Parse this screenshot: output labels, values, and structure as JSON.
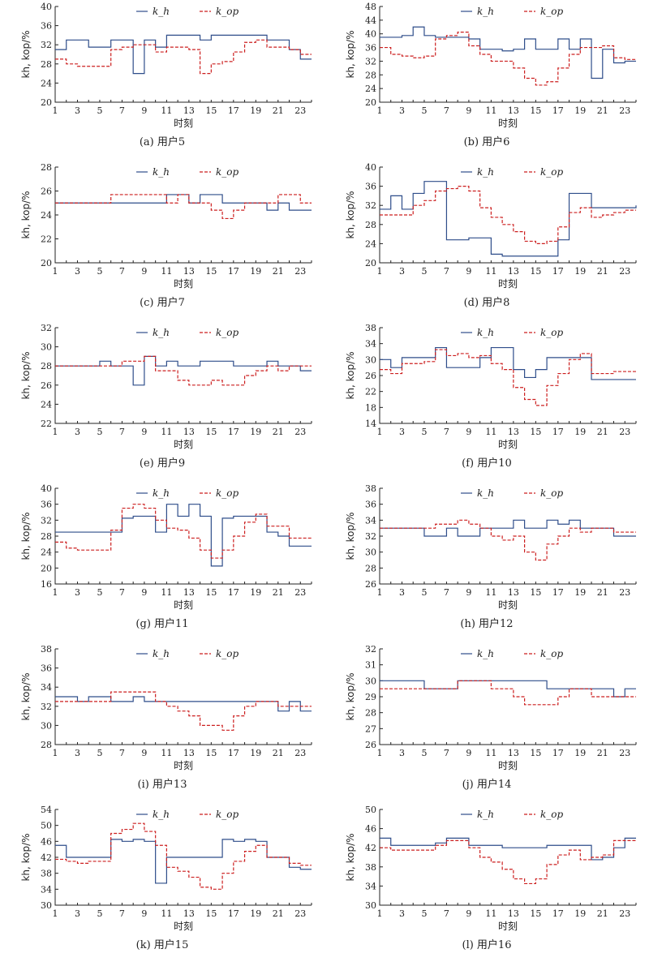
{
  "colors": {
    "kh": "#2e4d8a",
    "kop": "#cc1f1f",
    "axis": "#222222"
  },
  "chart_data": [
    {
      "type": "line",
      "caption": "(a) 用户5",
      "xlabel": "时刻",
      "ylabel": "kh, kop/%",
      "ylim": [
        20,
        40
      ],
      "yticks": [
        20,
        24,
        28,
        32,
        36,
        40
      ],
      "xticks": [
        1,
        3,
        5,
        7,
        9,
        11,
        13,
        15,
        17,
        19,
        21,
        23
      ],
      "xlim": [
        1,
        24
      ],
      "legend": [
        "k_h",
        "k_op"
      ],
      "series": [
        {
          "key": "kh",
          "style": "solid",
          "values": [
            31,
            33,
            33,
            31.5,
            31.5,
            33,
            33,
            26,
            33,
            31.5,
            34,
            34,
            34,
            33,
            34,
            34,
            34,
            34,
            34,
            33,
            33,
            31,
            29,
            29
          ]
        },
        {
          "key": "kop",
          "style": "dashed",
          "values": [
            29,
            28,
            27.5,
            27.5,
            27.5,
            31,
            31.5,
            32,
            32,
            30.5,
            31.5,
            31.5,
            31,
            26,
            28,
            28.5,
            30.5,
            32.5,
            33,
            31.5,
            31.5,
            31,
            30,
            30
          ]
        }
      ]
    },
    {
      "type": "line",
      "caption": "(b) 用户6",
      "xlabel": "时刻",
      "ylabel": "kh, kop/%",
      "ylim": [
        20,
        48
      ],
      "yticks": [
        20,
        24,
        28,
        32,
        36,
        40,
        44,
        48
      ],
      "xticks": [
        1,
        3,
        5,
        7,
        9,
        11,
        13,
        15,
        17,
        19,
        21,
        23
      ],
      "xlim": [
        1,
        24
      ],
      "legend": [
        "k_h",
        "k_op"
      ],
      "series": [
        {
          "key": "kh",
          "style": "solid",
          "values": [
            39,
            39,
            39.5,
            42,
            39.5,
            39,
            39,
            39,
            38.5,
            35.5,
            35.5,
            35,
            35.5,
            38.5,
            35.5,
            35.5,
            38.5,
            35.5,
            38.5,
            27,
            35.5,
            31.5,
            32,
            32
          ]
        },
        {
          "key": "kop",
          "style": "dashed",
          "values": [
            36,
            34,
            33.5,
            33,
            33.5,
            38.5,
            39.5,
            40.5,
            36.5,
            34,
            32,
            32,
            30,
            27,
            25,
            26,
            30,
            34,
            36,
            36,
            36.5,
            33,
            32.5,
            32.5
          ]
        }
      ]
    },
    {
      "type": "line",
      "caption": "(c) 用户7",
      "xlabel": "时刻",
      "ylabel": "kh, kop/%",
      "ylim": [
        20,
        28
      ],
      "yticks": [
        20,
        22,
        24,
        26,
        28
      ],
      "xticks": [
        1,
        3,
        5,
        7,
        9,
        11,
        13,
        15,
        17,
        19,
        21,
        23
      ],
      "xlim": [
        1,
        24
      ],
      "legend": [
        "k_h",
        "k_op"
      ],
      "series": [
        {
          "key": "kh",
          "style": "solid",
          "values": [
            25,
            25,
            25,
            25,
            25,
            25,
            25,
            25,
            25,
            25,
            25.7,
            25.7,
            25,
            25.7,
            25.7,
            25,
            25,
            25,
            25,
            24.4,
            25,
            24.4,
            24.4,
            24.4
          ]
        },
        {
          "key": "kop",
          "style": "dashed",
          "values": [
            25,
            25,
            25,
            25,
            25,
            25.7,
            25.7,
            25.7,
            25.7,
            25.7,
            25,
            25.7,
            25,
            25,
            24.4,
            23.7,
            24.4,
            25,
            25,
            25,
            25.7,
            25.7,
            25,
            25
          ]
        }
      ]
    },
    {
      "type": "line",
      "caption": "(d) 用户8",
      "xlabel": "时刻",
      "ylabel": "kh, kop/%",
      "ylim": [
        20,
        40
      ],
      "yticks": [
        20,
        24,
        28,
        32,
        36,
        40
      ],
      "xticks": [
        1,
        3,
        5,
        7,
        9,
        11,
        13,
        15,
        17,
        19,
        21,
        23
      ],
      "xlim": [
        1,
        24
      ],
      "legend": [
        "k_h",
        "k_op"
      ],
      "series": [
        {
          "key": "kh",
          "style": "solid",
          "values": [
            31.2,
            34,
            31.2,
            34.5,
            37,
            37,
            24.8,
            24.8,
            25.2,
            25.2,
            21.8,
            21.4,
            21.4,
            21.4,
            21.4,
            21.4,
            24.8,
            34.5,
            34.5,
            31.5,
            31.5,
            31.5,
            31.5,
            32
          ]
        },
        {
          "key": "kop",
          "style": "dashed",
          "values": [
            30,
            30,
            30,
            32,
            33,
            35,
            35.5,
            36,
            35,
            31.5,
            29.5,
            28,
            26.5,
            24.5,
            24,
            24.5,
            27.5,
            30.5,
            31.5,
            29.5,
            30,
            30.5,
            31,
            31
          ]
        }
      ]
    },
    {
      "type": "line",
      "caption": "(e) 用户9",
      "xlabel": "时刻",
      "ylabel": "kh, kop/%",
      "ylim": [
        22,
        32
      ],
      "yticks": [
        22,
        24,
        26,
        28,
        30,
        32
      ],
      "xticks": [
        1,
        3,
        5,
        7,
        9,
        11,
        13,
        15,
        17,
        19,
        21,
        23
      ],
      "xlim": [
        1,
        24
      ],
      "legend": [
        "k_h",
        "k_op"
      ],
      "series": [
        {
          "key": "kh",
          "style": "solid",
          "values": [
            28,
            28,
            28,
            28,
            28.5,
            28,
            28,
            26,
            29,
            28,
            28.5,
            28,
            28,
            28.5,
            28.5,
            28.5,
            28,
            28,
            28,
            28.5,
            28,
            28,
            27.5,
            27.5
          ]
        },
        {
          "key": "kop",
          "style": "dashed",
          "values": [
            28,
            28,
            28,
            28,
            28,
            28,
            28.5,
            28.5,
            29,
            27.5,
            27.5,
            26.5,
            26,
            26,
            26.5,
            26,
            26,
            27,
            27.5,
            28,
            27.5,
            28,
            28,
            28
          ]
        }
      ]
    },
    {
      "type": "line",
      "caption": "(f) 用户10",
      "xlabel": "时刻",
      "ylabel": "kh, kop/%",
      "ylim": [
        14,
        38
      ],
      "yticks": [
        14,
        18,
        22,
        26,
        30,
        34,
        38
      ],
      "xticks": [
        1,
        3,
        5,
        7,
        9,
        11,
        13,
        15,
        17,
        19,
        21,
        23
      ],
      "xlim": [
        1,
        24
      ],
      "legend": [
        "k_h",
        "k_op"
      ],
      "series": [
        {
          "key": "kh",
          "style": "solid",
          "values": [
            30,
            28,
            30.5,
            30.5,
            30.5,
            33,
            28,
            28,
            28,
            30.5,
            33,
            33,
            27.5,
            25.5,
            27.5,
            30.5,
            30.5,
            30.5,
            30.5,
            25,
            25,
            25,
            25,
            25
          ]
        },
        {
          "key": "kop",
          "style": "dashed",
          "values": [
            27.5,
            26.5,
            29,
            29,
            29.5,
            32.5,
            31,
            31.5,
            30.5,
            31,
            29,
            27.5,
            23,
            20,
            18.5,
            23.5,
            26.5,
            30,
            31.5,
            26.5,
            26.5,
            27,
            27,
            27
          ]
        }
      ]
    },
    {
      "type": "line",
      "caption": "(g) 用户11",
      "xlabel": "时刻",
      "ylabel": "kh, kop/%",
      "ylim": [
        16,
        40
      ],
      "yticks": [
        16,
        20,
        24,
        28,
        32,
        36,
        40
      ],
      "xticks": [
        1,
        3,
        5,
        7,
        9,
        11,
        13,
        15,
        17,
        19,
        21,
        23
      ],
      "xlim": [
        1,
        24
      ],
      "legend": [
        "k_h",
        "k_op"
      ],
      "series": [
        {
          "key": "kh",
          "style": "solid",
          "values": [
            29,
            29,
            29,
            29,
            29,
            29,
            32.5,
            33,
            33,
            29,
            36,
            33,
            36,
            33,
            20.5,
            32.5,
            33,
            33,
            33,
            29,
            28,
            25.5,
            25.5,
            25.5
          ]
        },
        {
          "key": "kop",
          "style": "dashed",
          "values": [
            26.5,
            25,
            24.5,
            24.5,
            24.5,
            29.5,
            35,
            36,
            35,
            32,
            30,
            29.5,
            27.5,
            24.5,
            22.5,
            24.5,
            28,
            31.5,
            33.5,
            30.5,
            30.5,
            27.5,
            27.5,
            27.5
          ]
        }
      ]
    },
    {
      "type": "line",
      "caption": "(h) 用户12",
      "xlabel": "时刻",
      "ylabel": "kh, kop/%",
      "ylim": [
        26,
        38
      ],
      "yticks": [
        26,
        28,
        30,
        32,
        34,
        36,
        38
      ],
      "xticks": [
        1,
        3,
        5,
        7,
        9,
        11,
        13,
        15,
        17,
        19,
        21,
        23
      ],
      "xlim": [
        1,
        24
      ],
      "legend": [
        "k_h",
        "k_op"
      ],
      "series": [
        {
          "key": "kh",
          "style": "solid",
          "values": [
            33,
            33,
            33,
            33,
            32,
            32,
            33,
            32,
            32,
            33,
            33,
            33,
            34,
            33,
            33,
            34,
            33.5,
            34,
            33,
            33,
            33,
            32,
            32,
            32
          ]
        },
        {
          "key": "kop",
          "style": "dashed",
          "values": [
            33,
            33,
            33,
            33,
            33,
            33.5,
            33.5,
            34,
            33.5,
            33,
            32,
            31.5,
            32,
            30,
            29,
            31,
            32,
            33,
            32.5,
            33,
            33,
            32.5,
            32.5,
            32.5
          ]
        }
      ]
    },
    {
      "type": "line",
      "caption": "(i) 用户13",
      "xlabel": "时刻",
      "ylabel": "kh, kop/%",
      "ylim": [
        28,
        38
      ],
      "yticks": [
        28,
        30,
        32,
        34,
        36,
        38
      ],
      "xticks": [
        1,
        3,
        5,
        7,
        9,
        11,
        13,
        15,
        17,
        19,
        21,
        23
      ],
      "xlim": [
        1,
        24
      ],
      "legend": [
        "k_h",
        "k_op"
      ],
      "series": [
        {
          "key": "kh",
          "style": "solid",
          "values": [
            33,
            33,
            32.5,
            33,
            33,
            32.5,
            32.5,
            33,
            32.5,
            32.5,
            32.5,
            32.5,
            32.5,
            32.5,
            32.5,
            32.5,
            32.5,
            32.5,
            32.5,
            32.5,
            31.5,
            32.5,
            31.5,
            31.5
          ]
        },
        {
          "key": "kop",
          "style": "dashed",
          "values": [
            32.5,
            32.5,
            32.5,
            32.5,
            32.5,
            33.5,
            33.5,
            33.5,
            33.5,
            32.5,
            32,
            31.5,
            31,
            30,
            30,
            29.5,
            31,
            32,
            32.5,
            32.5,
            32,
            32,
            32,
            32
          ]
        }
      ]
    },
    {
      "type": "line",
      "caption": "(j) 用户14",
      "xlabel": "时刻",
      "ylabel": "kh, kop/%",
      "ylim": [
        26,
        32
      ],
      "yticks": [
        26,
        27,
        28,
        29,
        30,
        31,
        32
      ],
      "xticks": [
        1,
        3,
        5,
        7,
        9,
        11,
        13,
        15,
        17,
        19,
        21,
        23
      ],
      "xlim": [
        1,
        24
      ],
      "legend": [
        "k_h",
        "k_op"
      ],
      "series": [
        {
          "key": "kh",
          "style": "solid",
          "values": [
            30,
            30,
            30,
            30,
            29.5,
            29.5,
            29.5,
            30,
            30,
            30,
            30,
            30,
            30,
            30,
            30,
            29.5,
            29.5,
            29.5,
            29.5,
            29.5,
            29.5,
            29,
            29.5,
            29.5
          ]
        },
        {
          "key": "kop",
          "style": "dashed",
          "values": [
            29.5,
            29.5,
            29.5,
            29.5,
            29.5,
            29.5,
            29.5,
            30,
            30,
            30,
            29.5,
            29.5,
            29,
            28.5,
            28.5,
            28.5,
            29,
            29.5,
            29.5,
            29,
            29,
            29,
            29,
            29
          ]
        }
      ]
    },
    {
      "type": "line",
      "caption": "(k) 用户15",
      "xlabel": "时刻",
      "ylabel": "kh, kop/%",
      "ylim": [
        30,
        54
      ],
      "yticks": [
        30,
        34,
        38,
        42,
        46,
        50,
        54
      ],
      "xticks": [
        1,
        3,
        5,
        7,
        9,
        11,
        13,
        15,
        17,
        19,
        21,
        23
      ],
      "xlim": [
        1,
        24
      ],
      "legend": [
        "k_h",
        "k_op"
      ],
      "series": [
        {
          "key": "kh",
          "style": "solid",
          "values": [
            45,
            42,
            42,
            42,
            42,
            46.5,
            46,
            46.5,
            46,
            35.5,
            42,
            42,
            42,
            42,
            42,
            46.5,
            46,
            46.5,
            46,
            42,
            42,
            39.5,
            39,
            39
          ]
        },
        {
          "key": "kop",
          "style": "dashed",
          "values": [
            41.5,
            41,
            40.5,
            41,
            41,
            48,
            49,
            50.5,
            48.5,
            45,
            39.5,
            38.5,
            37,
            34.5,
            34,
            38,
            41,
            43.5,
            45,
            42,
            42,
            40.5,
            40,
            40
          ]
        }
      ]
    },
    {
      "type": "line",
      "caption": "(l) 用户16",
      "xlabel": "时刻",
      "ylabel": "kh, kop/%",
      "ylim": [
        30,
        50
      ],
      "yticks": [
        30,
        34,
        38,
        42,
        46,
        50
      ],
      "xticks": [
        1,
        3,
        5,
        7,
        9,
        11,
        13,
        15,
        17,
        19,
        21,
        23
      ],
      "xlim": [
        1,
        24
      ],
      "legend": [
        "k_h",
        "k_op"
      ],
      "series": [
        {
          "key": "kh",
          "style": "solid",
          "values": [
            44,
            42.5,
            42.5,
            42.5,
            42.5,
            43,
            44,
            44,
            42.5,
            42.5,
            42.5,
            42,
            42,
            42,
            42,
            42.5,
            42.5,
            42.5,
            42.5,
            39.5,
            40,
            42,
            44,
            44
          ]
        },
        {
          "key": "kop",
          "style": "dashed",
          "values": [
            42,
            41.5,
            41.5,
            41.5,
            41.5,
            42.5,
            43.5,
            43.5,
            42,
            40,
            39,
            37.5,
            35.5,
            34.5,
            35.5,
            38.5,
            40.5,
            41.5,
            39.5,
            40,
            40.5,
            43.5,
            43.5,
            43.5
          ]
        }
      ]
    }
  ]
}
